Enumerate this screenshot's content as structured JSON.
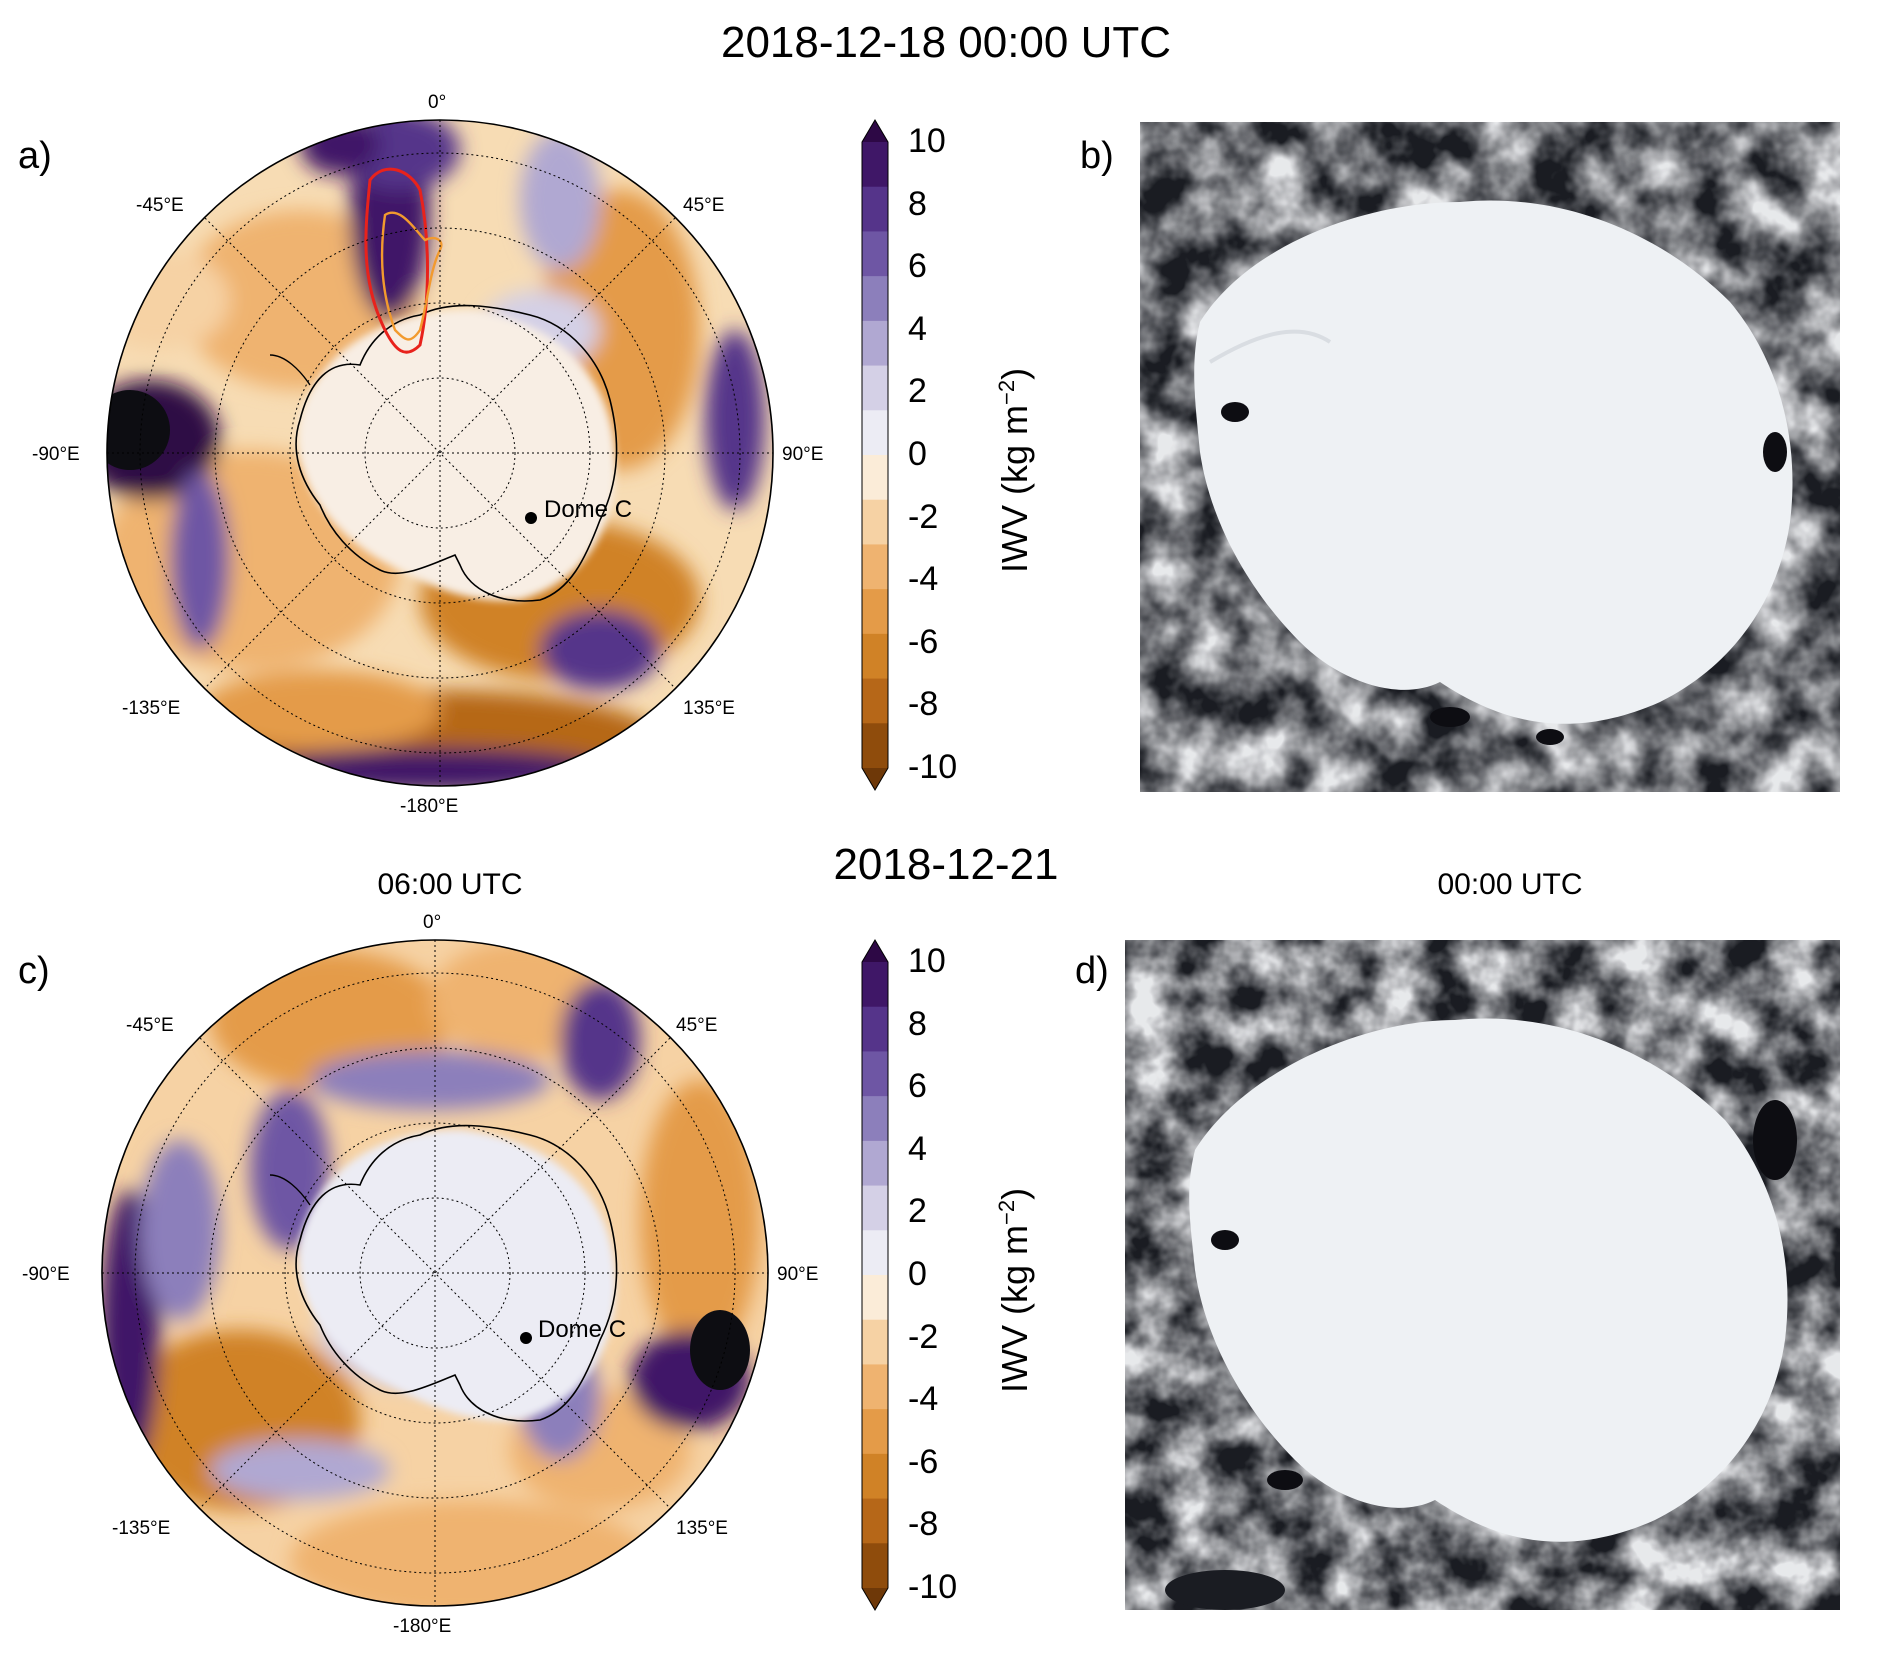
{
  "figure": {
    "top_title": "2018-12-18 00:00 UTC",
    "mid_title": "2018-12-21",
    "panel_c_time": "06:00 UTC",
    "panel_d_time": "00:00 UTC"
  },
  "panels": {
    "a": {
      "letter": "a)"
    },
    "b": {
      "letter": "b)"
    },
    "c": {
      "letter": "c)"
    },
    "d": {
      "letter": "d)"
    }
  },
  "longitude_labels": [
    "0°",
    "45°E",
    "90°E",
    "135°E",
    "-180°E",
    "-135°E",
    "-90°E",
    "-45°E"
  ],
  "marker": {
    "label": "Dome C"
  },
  "colorbar": {
    "label_main": "IWV (kg m",
    "label_sup": "−2",
    "label_close": ")",
    "ticks": [
      "10",
      "8",
      "6",
      "4",
      "2",
      "0",
      "-2",
      "-4",
      "-6",
      "-8",
      "-10"
    ],
    "colors": {
      "max": "#2d0845",
      "purple": [
        "#3f1767",
        "#55348a",
        "#6e56a4",
        "#8c7fbb",
        "#b0a8d2",
        "#d4d0e6",
        "#ececf4"
      ],
      "orange": [
        "#fbecd8",
        "#f6d2a4",
        "#efb370",
        "#e49b48",
        "#d08226",
        "#b66718",
        "#8f4c0c"
      ],
      "min": "#6e3808"
    }
  },
  "colors": {
    "ar_contour_outer": "#e8221c",
    "ar_contour_inner": "#f29a2e",
    "ocean_dark": "#0d0d12",
    "ice_sheet": "#eef1f4",
    "cloud": "#c9cbd0"
  }
}
